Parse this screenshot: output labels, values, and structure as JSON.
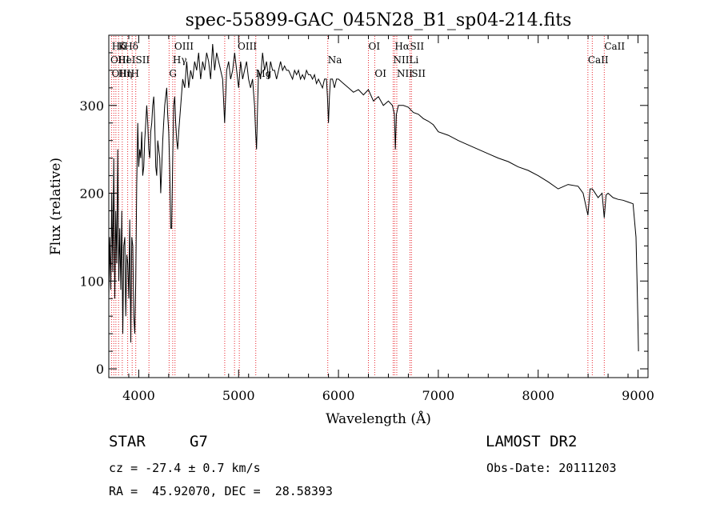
{
  "chart_data": {
    "type": "line",
    "title": "spec-55899-GAC_045N28_B1_sp04-214.fits",
    "xlabel": "Wavelength (Å)",
    "ylabel": "Flux (relative)",
    "xlim": [
      3700,
      9100
    ],
    "ylim": [
      -10,
      380
    ],
    "xticks": [
      4000,
      5000,
      6000,
      7000,
      8000,
      9000
    ],
    "yticks": [
      0,
      100,
      200,
      300
    ],
    "grid": false,
    "series": [
      {
        "x": [
          3700,
          3710,
          3720,
          3730,
          3740,
          3750,
          3760,
          3770,
          3780,
          3790,
          3800,
          3810,
          3820,
          3830,
          3840,
          3850,
          3860,
          3870,
          3880,
          3890,
          3900,
          3910,
          3920,
          3930,
          3940,
          3950,
          3960,
          3970,
          3980,
          3990,
          4000,
          4010,
          4020,
          4030,
          4040,
          4050,
          4060,
          4070,
          4080,
          4090,
          4100,
          4110,
          4120,
          4130,
          4140,
          4150,
          4160,
          4170,
          4180,
          4190,
          4200,
          4210,
          4220,
          4230,
          4240,
          4250,
          4260,
          4270,
          4280,
          4290,
          4300,
          4310,
          4320,
          4330,
          4340,
          4350,
          4360,
          4370,
          4380,
          4390,
          4400,
          4420,
          4440,
          4460,
          4480,
          4500,
          4520,
          4540,
          4560,
          4580,
          4600,
          4620,
          4640,
          4660,
          4680,
          4700,
          4720,
          4740,
          4760,
          4780,
          4800,
          4820,
          4840,
          4860,
          4880,
          4900,
          4920,
          4940,
          4960,
          4980,
          5000,
          5020,
          5040,
          5060,
          5080,
          5100,
          5120,
          5140,
          5160,
          5170,
          5180,
          5190,
          5200,
          5220,
          5240,
          5260,
          5280,
          5300,
          5320,
          5340,
          5360,
          5380,
          5400,
          5420,
          5440,
          5460,
          5480,
          5500,
          5520,
          5540,
          5560,
          5580,
          5600,
          5620,
          5640,
          5660,
          5680,
          5700,
          5720,
          5740,
          5760,
          5780,
          5800,
          5820,
          5840,
          5860,
          5880,
          5890,
          5900,
          5910,
          5920,
          5940,
          5960,
          5980,
          6000,
          6050,
          6100,
          6150,
          6200,
          6250,
          6300,
          6350,
          6400,
          6450,
          6500,
          6540,
          6560,
          6570,
          6580,
          6600,
          6650,
          6700,
          6750,
          6800,
          6850,
          6900,
          6950,
          7000,
          7100,
          7200,
          7300,
          7400,
          7500,
          7600,
          7700,
          7800,
          7900,
          8000,
          8100,
          8200,
          8300,
          8400,
          8450,
          8498,
          8520,
          8542,
          8560,
          8600,
          8640,
          8662,
          8680,
          8700,
          8750,
          8800,
          8850,
          8900,
          8950,
          8980,
          8990,
          9000,
          9005
        ],
        "y": [
          80,
          150,
          90,
          200,
          110,
          240,
          80,
          180,
          120,
          250,
          100,
          160,
          90,
          180,
          40,
          140,
          150,
          60,
          130,
          120,
          80,
          170,
          30,
          150,
          140,
          60,
          40,
          100,
          210,
          280,
          230,
          250,
          240,
          270,
          220,
          230,
          260,
          280,
          300,
          280,
          250,
          240,
          270,
          280,
          300,
          310,
          280,
          230,
          220,
          260,
          250,
          240,
          200,
          230,
          260,
          280,
          300,
          310,
          320,
          290,
          270,
          230,
          160,
          160,
          240,
          300,
          310,
          280,
          260,
          250,
          270,
          300,
          330,
          320,
          350,
          320,
          340,
          330,
          350,
          340,
          360,
          330,
          350,
          340,
          360,
          350,
          330,
          370,
          340,
          360,
          350,
          340,
          330,
          280,
          340,
          350,
          330,
          340,
          360,
          340,
          320,
          350,
          330,
          340,
          350,
          330,
          320,
          330,
          300,
          270,
          250,
          300,
          340,
          330,
          360,
          340,
          350,
          330,
          350,
          340,
          340,
          330,
          340,
          350,
          340,
          345,
          340,
          340,
          335,
          330,
          340,
          335,
          340,
          330,
          335,
          330,
          340,
          335,
          335,
          330,
          335,
          325,
          330,
          325,
          320,
          330,
          330,
          310,
          280,
          310,
          330,
          330,
          320,
          330,
          330,
          325,
          320,
          315,
          318,
          312,
          318,
          305,
          310,
          300,
          305,
          300,
          290,
          250,
          290,
          300,
          300,
          298,
          292,
          290,
          285,
          282,
          278,
          270,
          266,
          260,
          255,
          250,
          245,
          240,
          236,
          230,
          226,
          220,
          213,
          205,
          210,
          208,
          200,
          175,
          205,
          205,
          202,
          195,
          200,
          172,
          198,
          200,
          195,
          193,
          192,
          190,
          188,
          150,
          100,
          50,
          20
        ]
      }
    ],
    "annotations": [
      {
        "label": "Hδ",
        "x": 3730,
        "row": 1
      },
      {
        "label": "K",
        "x": 3794,
        "row": 1
      },
      {
        "label": "Hδ",
        "x": 3855,
        "row": 1
      },
      {
        "label": "OIII",
        "x": 3716,
        "row": 2
      },
      {
        "label": "HeISII",
        "x": 3790,
        "row": 2
      },
      {
        "label": "OIII",
        "x": 3728,
        "row": 3
      },
      {
        "label": "Hη",
        "x": 3794,
        "row": 3
      },
      {
        "label": "H",
        "x": 3920,
        "row": 3
      },
      {
        "label": "OIII",
        "x": 4356,
        "row": 1
      },
      {
        "label": "Hγ",
        "x": 4340,
        "row": 2
      },
      {
        "label": "G",
        "x": 4304,
        "row": 3
      },
      {
        "label": "OIII",
        "x": 4990,
        "row": 1
      },
      {
        "label": "Mg",
        "x": 5170,
        "row": 3
      },
      {
        "label": "Na",
        "x": 5893,
        "row": 2
      },
      {
        "label": "OI",
        "x": 6300,
        "row": 1
      },
      {
        "label": "OI",
        "x": 6363,
        "row": 3
      },
      {
        "label": "Hα",
        "x": 6563,
        "row": 1
      },
      {
        "label": "SII",
        "x": 6716,
        "row": 1
      },
      {
        "label": "NII",
        "x": 6548,
        "row": 2
      },
      {
        "label": "Li",
        "x": 6708,
        "row": 2
      },
      {
        "label": "NII",
        "x": 6584,
        "row": 3
      },
      {
        "label": "SII",
        "x": 6731,
        "row": 3
      },
      {
        "label": "CaII",
        "x": 8662,
        "row": 1
      },
      {
        "label": "CaII",
        "x": 8498,
        "row": 2
      }
    ],
    "line_markers": [
      3727,
      3750,
      3771,
      3798,
      3835,
      3889,
      3934,
      3970,
      4102,
      4304,
      4340,
      4363,
      4861,
      4959,
      5007,
      5172,
      5893,
      6300,
      6363,
      6548,
      6563,
      6584,
      6716,
      6731,
      8498,
      8542,
      8662
    ]
  },
  "info": {
    "object_type": "STAR",
    "subclass": "G7",
    "survey": "LAMOST DR2",
    "redshift": "cz = -27.4 ± 0.7 km/s",
    "obs_date": "Obs-Date: 20111203",
    "coords": "RA =  45.92070, DEC =  28.58393"
  },
  "colors": {
    "line": "#000000",
    "marker": "#e8262e",
    "background": "#ffffff"
  }
}
